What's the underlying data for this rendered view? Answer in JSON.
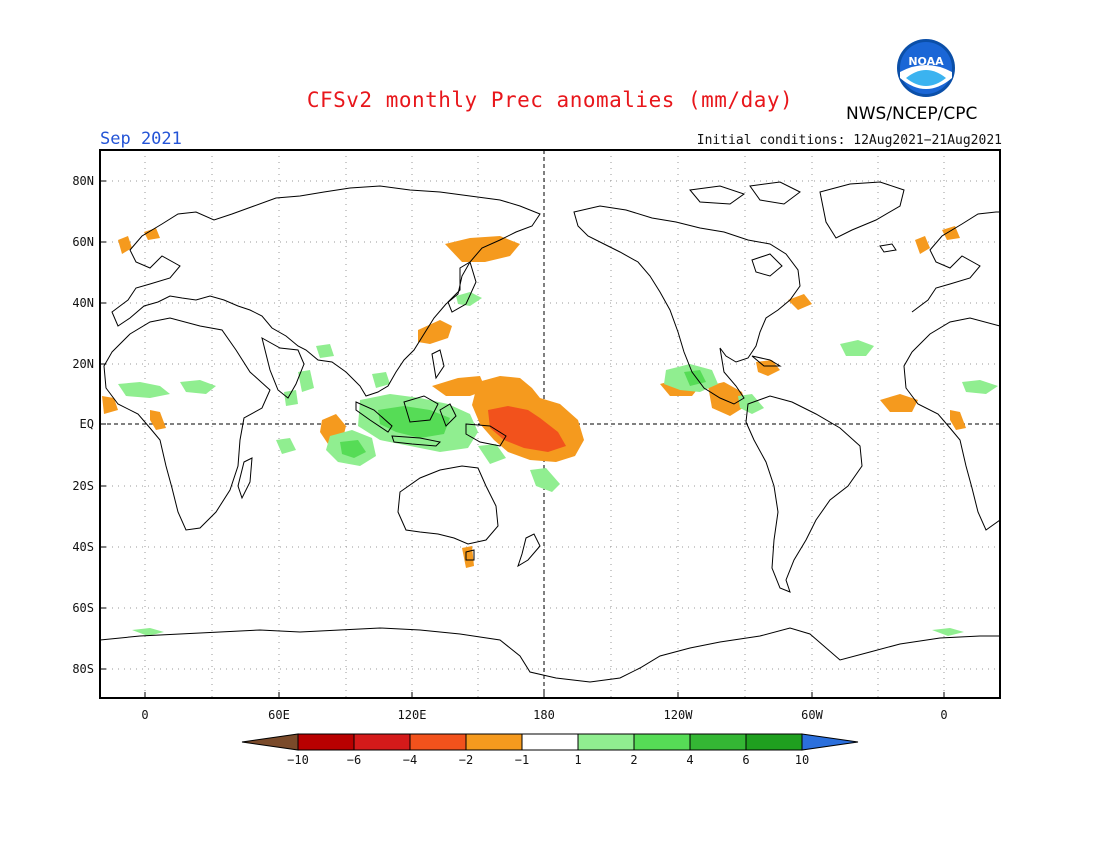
{
  "title": "CFSv2 monthly Prec anomalies (mm/day)",
  "month": "Sep 2021",
  "initial_conditions": "Initial conditions: 12Aug2021−21Aug2021",
  "organization": "NWS/NCEP/CPC",
  "logo_text": "NOAA",
  "y_ticks": [
    "80N",
    "60N",
    "40N",
    "20N",
    "EQ",
    "20S",
    "40S",
    "60S",
    "80S"
  ],
  "x_ticks": [
    "0",
    "60E",
    "120E",
    "180",
    "120W",
    "60W",
    "0"
  ],
  "colorbar": {
    "labels": [
      "−10",
      "−6",
      "−4",
      "−2",
      "−1",
      "1",
      "2",
      "4",
      "6",
      "10"
    ],
    "colors": [
      "#7a4a2a",
      "#b80000",
      "#d41a1a",
      "#f2521c",
      "#f59a1e",
      "#ffffff",
      "#90ee90",
      "#56dc56",
      "#34b734",
      "#1f9f1f",
      "#2b6fdc"
    ]
  },
  "anomaly_colors": {
    "dry_light": "#f59a1e",
    "dry_mid": "#f2521c",
    "dry_strong": "#d41a1a",
    "wet_light": "#90ee90",
    "wet_mid": "#56dc56",
    "wet_strong": "#34b734"
  }
}
